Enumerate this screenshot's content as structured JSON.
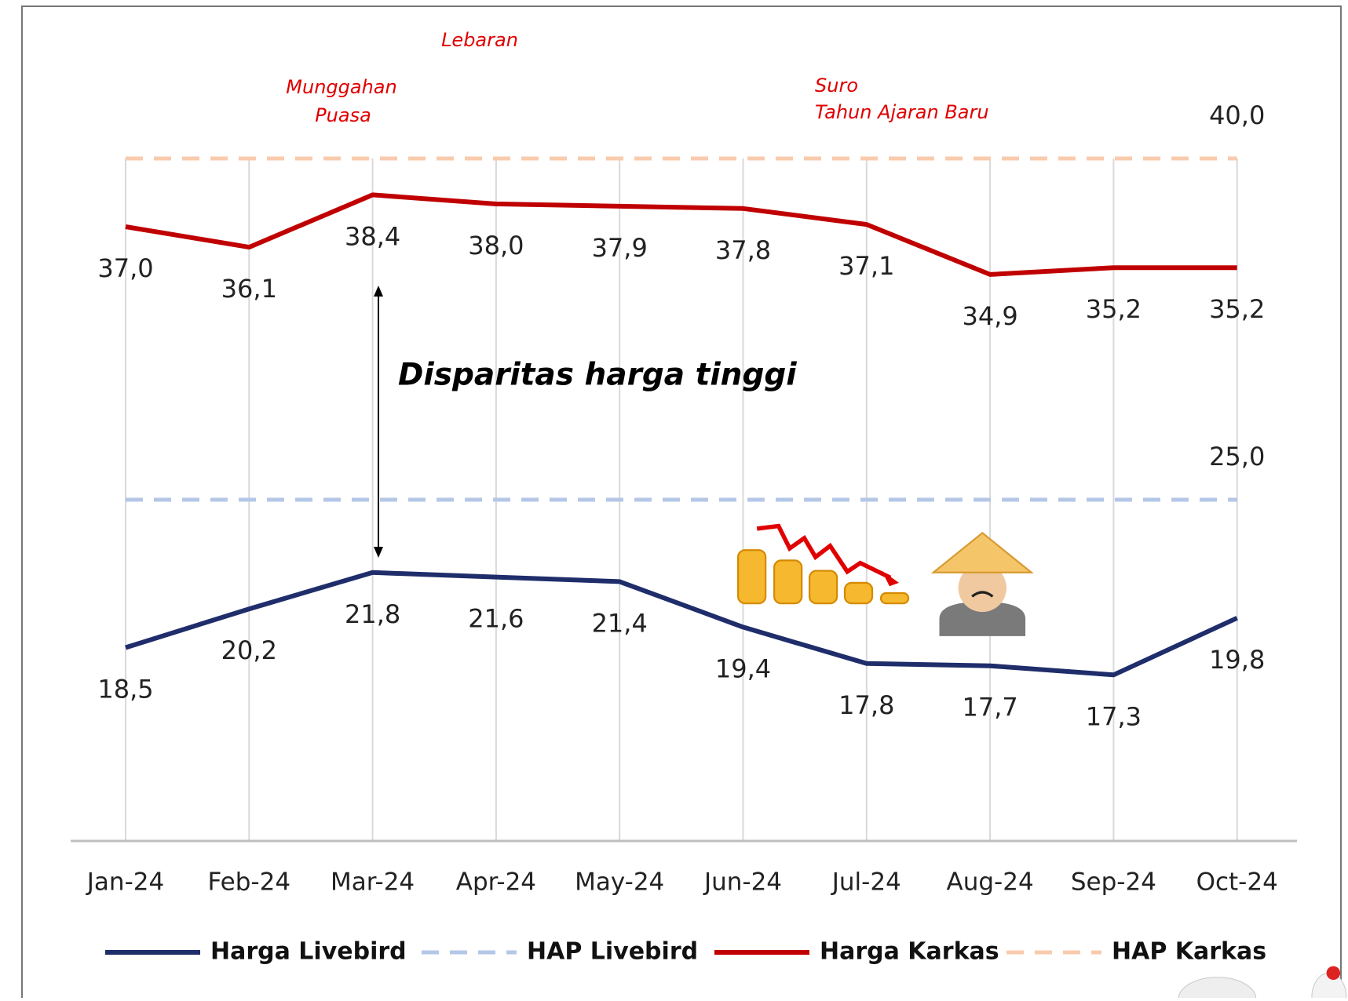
{
  "chart_data": {
    "type": "line",
    "categories": [
      "Jan-24",
      "Feb-24",
      "Mar-24",
      "Apr-24",
      "May-24",
      "Jun-24",
      "Jul-24",
      "Aug-24",
      "Sep-24",
      "Oct-24"
    ],
    "ylim": [
      10,
      45
    ],
    "grid": true,
    "legend": "bottom",
    "series": [
      {
        "name": "Harga Livebird",
        "color": "#1f2d6b",
        "style": "solid",
        "values": [
          18.5,
          20.2,
          21.8,
          21.6,
          21.4,
          19.4,
          17.8,
          17.7,
          17.3,
          19.8
        ],
        "value_labels": [
          "18,5",
          "20,2",
          "21,8",
          "21,6",
          "21,4",
          "19,4",
          "17,8",
          "17,7",
          "17,3",
          "19,8"
        ]
      },
      {
        "name": "HAP Livebird",
        "color": "#b4c7e7",
        "style": "dashed",
        "values": [
          25,
          25,
          25,
          25,
          25,
          25,
          25,
          25,
          25,
          25
        ],
        "value_labels": [
          null,
          null,
          null,
          null,
          null,
          null,
          null,
          null,
          null,
          "25,0"
        ]
      },
      {
        "name": "Harga Karkas",
        "color": "#c00000",
        "style": "solid",
        "values": [
          37.0,
          36.1,
          38.4,
          38.0,
          37.9,
          37.8,
          37.1,
          34.9,
          35.2,
          35.2
        ],
        "value_labels": [
          "37,0",
          "36,1",
          "38,4",
          "38,0",
          "37,9",
          "37,8",
          "37,1",
          "34,9",
          "35,2",
          "35,2"
        ]
      },
      {
        "name": "HAP Karkas",
        "color": "#f8cbad",
        "style": "dashed",
        "values": [
          40,
          40,
          40,
          40,
          40,
          40,
          40,
          40,
          40,
          40
        ],
        "value_labels": [
          null,
          null,
          null,
          null,
          null,
          null,
          null,
          null,
          null,
          "40,0"
        ]
      }
    ],
    "annotations": [
      "Lebaran",
      "Munggahan",
      "Puasa",
      "Suro",
      "Tahun Ajaran Baru",
      "Disparitas harga tinggi"
    ]
  }
}
